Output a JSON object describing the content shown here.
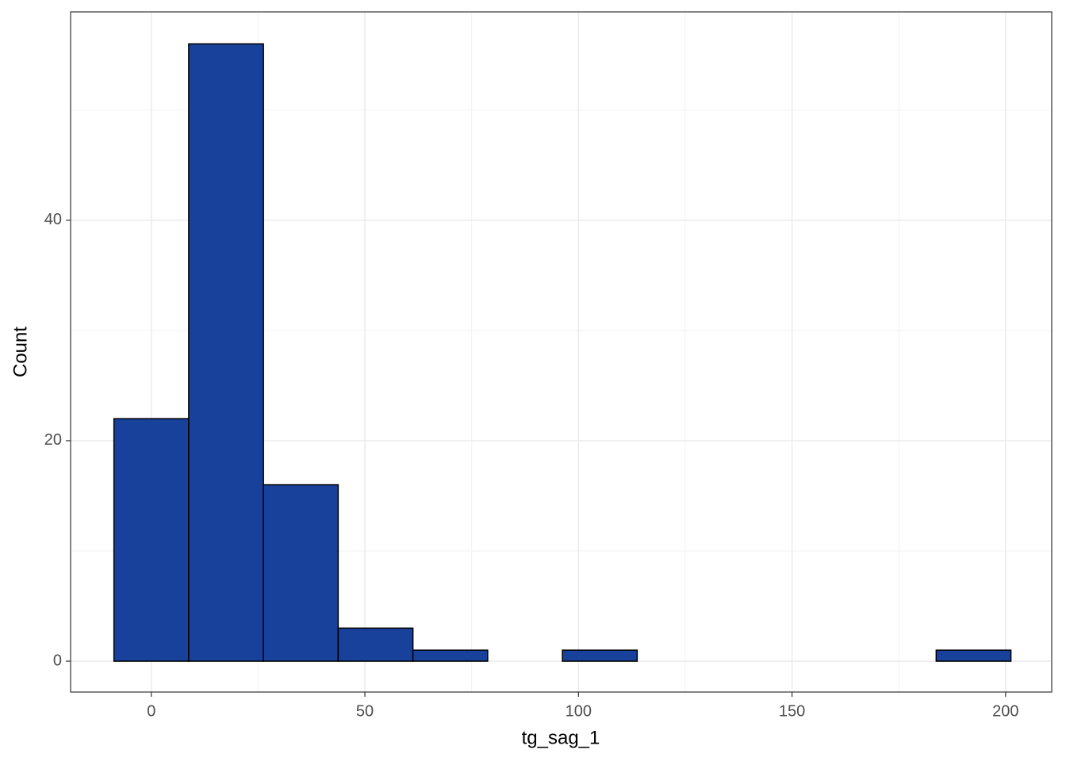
{
  "chart_data": {
    "type": "histogram",
    "x_label": "tg_sag_1",
    "y_label": "Count",
    "bins": [
      -8.75,
      8.75,
      26.25,
      43.75,
      61.25,
      78.75,
      96.25,
      113.75,
      131.25,
      148.75,
      166.25,
      183.75,
      201.25
    ],
    "counts": [
      22,
      56,
      16,
      3,
      1,
      0,
      1,
      0,
      0,
      0,
      0,
      1
    ],
    "color": "#17419a",
    "edge_color": "#000000",
    "xlim": [
      -18.9,
      210.8
    ],
    "ylim": [
      -2.8,
      58.9
    ],
    "xticks": [
      0,
      50,
      100,
      150,
      200
    ],
    "yticks": [
      0,
      20,
      40
    ],
    "x_minor_grid": [
      25,
      75,
      125,
      175
    ],
    "y_minor_grid": [
      10,
      30,
      50
    ],
    "grid": true
  }
}
